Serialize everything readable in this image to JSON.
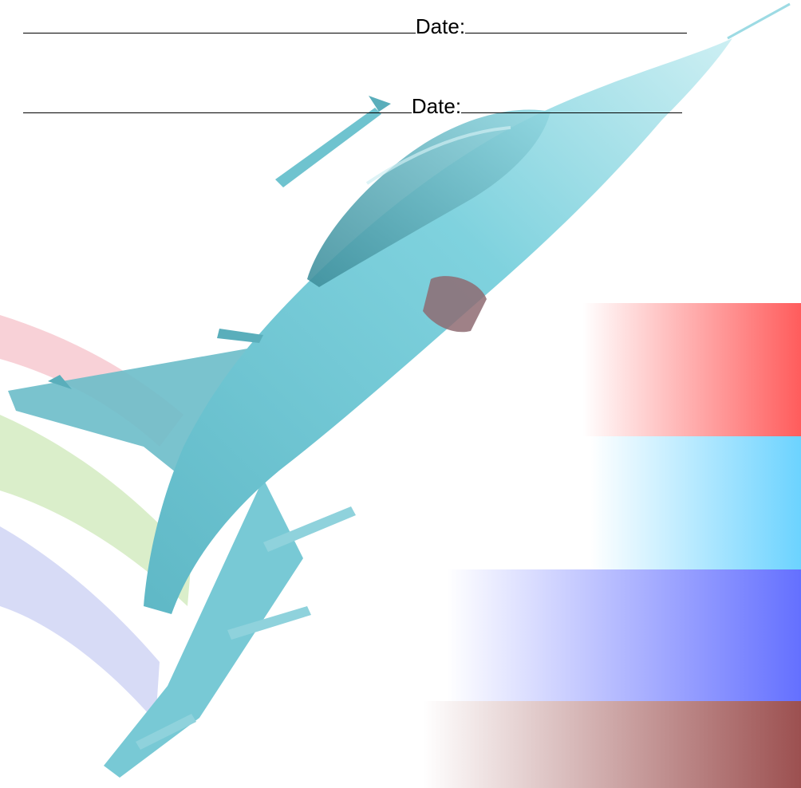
{
  "signature_block": {
    "lines": [
      {
        "date_label": "Date:"
      },
      {
        "date_label": "Date:"
      }
    ]
  },
  "decoration": {
    "icons": [
      "fighter-jet-illustration",
      "swoosh-graphic",
      "color-band-graphic"
    ],
    "colors": {
      "jet": "#6fc9d6",
      "jet_dark": "#4c9fae",
      "band_red": "#ff5c5c",
      "band_cyan": "#6cd3ff",
      "band_blue": "#6470ff",
      "band_maroon": "#9c5050",
      "swoosh_red": "#f7c9d0",
      "swoosh_green": "#d6ecc4",
      "swoosh_blue": "#d5d9f6"
    }
  }
}
